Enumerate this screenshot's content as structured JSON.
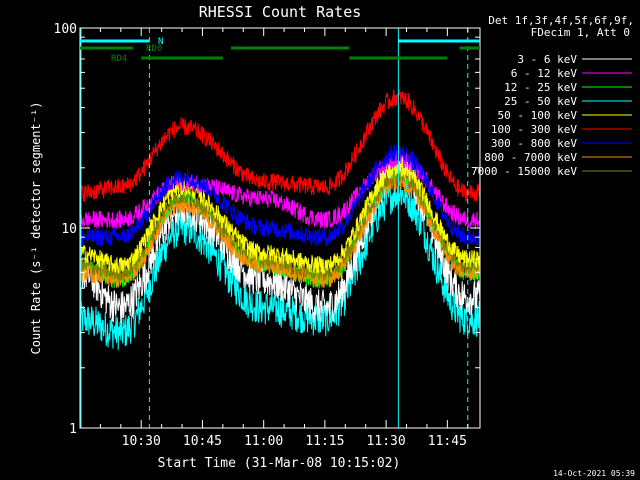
{
  "chart_data": {
    "type": "line",
    "title": "RHESSI Count Rates",
    "xlabel": "Start Time (31-Mar-08 10:15:02)",
    "ylabel": "Count Rate (s⁻¹ detector segment⁻¹)",
    "y_scale": "log",
    "ylim": [
      1,
      100
    ],
    "xlim": [
      "10:15",
      "11:53"
    ],
    "x_ticks": [
      "10:30",
      "10:45",
      "11:00",
      "11:15",
      "11:30",
      "11:45"
    ],
    "y_ticks": [
      "1",
      "10",
      "100"
    ],
    "grid": false,
    "legend_position": "right",
    "legend_header": [
      "Det 1f,3f,4f,5f,6f,9f,",
      "FDecim 1, Att 0"
    ],
    "time_markers": [
      "10:32",
      "11:33",
      "11:50"
    ],
    "series": [
      {
        "name": "3 - 6 keV",
        "color": "#ffffff",
        "values_at": {
          "10:15": 6.0,
          "10:25": 4.0,
          "10:40": 12.5,
          "11:00": 5.5,
          "11:15": 4.0,
          "11:33": 20.0,
          "11:50": 4.5
        }
      },
      {
        "name": "6 - 12 keV",
        "color": "#ff00ff",
        "values_at": {
          "10:15": 11.0,
          "10:25": 11.0,
          "10:40": 17.0,
          "11:00": 14.0,
          "11:15": 11.0,
          "11:33": 22.0,
          "11:50": 11.0
        }
      },
      {
        "name": "12 - 25 keV",
        "color": "#00ff00",
        "values_at": {
          "10:15": 6.5,
          "10:25": 5.5,
          "10:40": 14.0,
          "11:00": 6.5,
          "11:15": 5.5,
          "11:33": 18.0,
          "11:50": 6.0
        }
      },
      {
        "name": "25 - 50 keV",
        "color": "#00ffff",
        "values_at": {
          "10:15": 3.5,
          "10:25": 3.0,
          "10:40": 10.0,
          "11:00": 4.0,
          "11:15": 3.5,
          "11:33": 15.0,
          "11:50": 3.5
        }
      },
      {
        "name": "50 - 100 keV",
        "color": "#ffff00",
        "values_at": {
          "10:15": 7.5,
          "10:25": 6.5,
          "10:40": 16.0,
          "11:00": 7.5,
          "11:15": 6.5,
          "11:33": 20.0,
          "11:50": 7.0
        }
      },
      {
        "name": "100 - 300 keV",
        "color": "#ff0000",
        "values_at": {
          "10:15": 15.0,
          "10:25": 16.0,
          "10:40": 32.0,
          "11:00": 17.0,
          "11:15": 16.0,
          "11:33": 45.0,
          "11:50": 15.0
        }
      },
      {
        "name": "300 - 800 keV",
        "color": "#0000ff",
        "values_at": {
          "10:15": 9.0,
          "10:25": 9.0,
          "10:40": 18.0,
          "11:00": 10.0,
          "11:15": 9.0,
          "11:33": 24.0,
          "11:50": 9.0
        }
      },
      {
        "name": "800 - 7000 keV",
        "color": "#ff8c00",
        "values_at": {
          "10:15": 6.0,
          "10:25": 5.5,
          "10:40": 13.0,
          "11:00": 6.5,
          "11:15": 5.5,
          "11:33": 17.0,
          "11:50": 6.0
        }
      },
      {
        "name": "7000 - 15000 keV",
        "color": "#808000",
        "values_at": {
          "10:15": 6.5,
          "10:25": 6.0,
          "10:40": 14.5,
          "11:00": 7.0,
          "11:15": 6.0,
          "11:33": 18.5,
          "11:50": 6.5
        }
      }
    ],
    "status_bars": [
      {
        "label": "N",
        "color": "#00ffff",
        "segments": [
          [
            "10:15",
            "10:32"
          ],
          [
            "11:33",
            "11:53"
          ]
        ]
      },
      {
        "label": "RD0",
        "color": "#008000",
        "segments": [
          [
            "10:15",
            "10:28"
          ],
          [
            "10:52",
            "11:21"
          ],
          [
            "11:48",
            "11:53"
          ]
        ]
      },
      {
        "label": "RD4",
        "color": "#008000",
        "segments": [
          [
            "10:30",
            "10:50"
          ],
          [
            "11:21",
            "11:45"
          ]
        ]
      }
    ]
  },
  "footer": {
    "timestamp": "14-Oct-2021 05:39"
  },
  "colors": {
    "background": "#000000",
    "axes": "#ffffff",
    "marker": "#00ffff"
  }
}
